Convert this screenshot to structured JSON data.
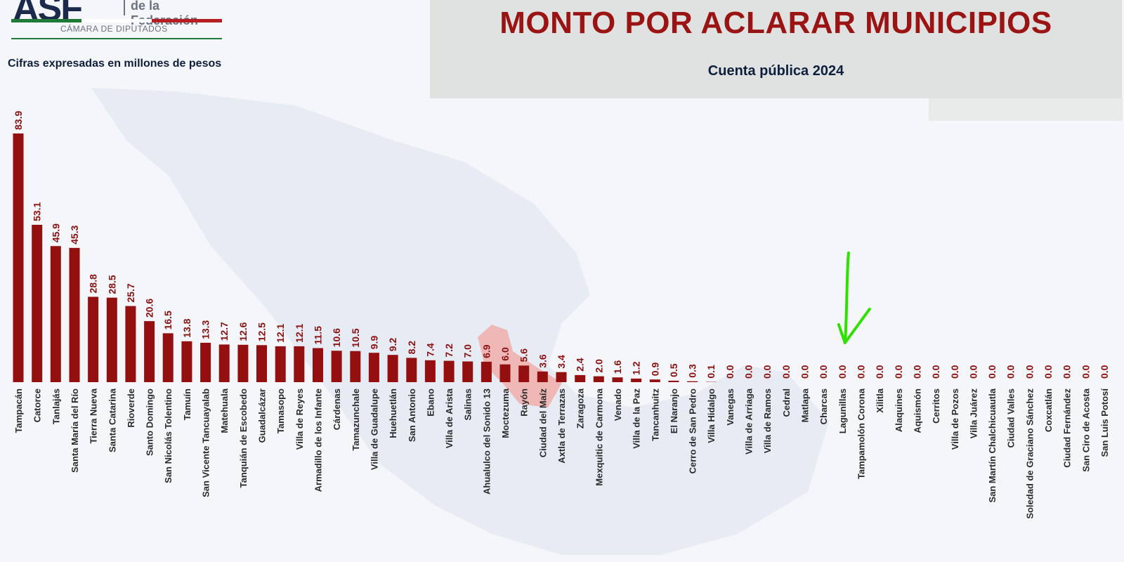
{
  "header": {
    "logo_mark": "ASF",
    "logo_line1": "de la Federación",
    "logo_line2": "CÁMARA DE DIPUTADOS",
    "units_note": "Cifras expresadas en millones de pesos",
    "title": "MONTO POR ACLARAR MUNICIPIOS",
    "year_label": "Cuenta pública 2024"
  },
  "colors": {
    "bar": "#940f0f",
    "value_label": "#8b1010",
    "title": "#9b1414",
    "navy": "#0e1f3d",
    "annotation_arrow": "#2fe000",
    "highlight": "#f2a6a0"
  },
  "chart_data": {
    "type": "bar",
    "title": "MONTO POR ACLARAR MUNICIPIOS",
    "subtitle": "Cuenta pública 2024",
    "ylabel": "",
    "xlabel": "",
    "units": "Cifras expresadas en millones de pesos",
    "ylim": [
      0,
      90
    ],
    "grid": false,
    "legend": "none",
    "categories": [
      "Tampacán",
      "Catorce",
      "Tanlajás",
      "Santa María del Río",
      "Tierra Nueva",
      "Santa Catarina",
      "Rioverde",
      "Santo Domingo",
      "San Nicolás Tolentino",
      "Tamuín",
      "San Vicente Tancuayalab",
      "Matehuala",
      "Tanquián de Escobedo",
      "Guadalcázar",
      "Tamasopo",
      "Villa de Reyes",
      "Armadillo de los Infante",
      "Cárdenas",
      "Tamazunchale",
      "Villa de Guadalupe",
      "Huehuetlán",
      "San Antonio",
      "Ebano",
      "Villa de Arista",
      "Salinas",
      "Ahualulco del Sonido 13",
      "Moctezuma",
      "Rayón",
      "Ciudad del Maíz",
      "Axtla de Terrazas",
      "Zaragoza",
      "Mexquitic de Carmona",
      "Venado",
      "Villa de la Paz",
      "Tancanhuitz",
      "El Naranjo",
      "Cerro de San Pedro",
      "Villa Hidalgo",
      "Vanegas",
      "Villa de Arriaga",
      "Villa de Ramos",
      "Cedral",
      "Matlapa",
      "Charcas",
      "Lagunillas",
      "Tampamolón Corona",
      "Xilitla",
      "Alaquines",
      "Aquismón",
      "Cerritos",
      "Villa de Pozos",
      "Villa Juárez",
      "San Martín Chalchicuautla",
      "Ciudad Valles",
      "Soledad de Graciano Sánchez",
      "Coxcatlán",
      "Ciudad Fernández",
      "San Ciro de Acosta",
      "San Luis Potosí"
    ],
    "value_labels": [
      "83.9",
      "53.1",
      "45.9",
      "45.3",
      "28.8",
      "28.5",
      "25.7",
      "20.6",
      "16.5",
      "13.8",
      "13.3",
      "12.7",
      "12.6",
      "12.5",
      "12.1",
      "12.1",
      "11.5",
      "10.6",
      "10.5",
      "9.9",
      "9.2",
      "8.2",
      "7.4",
      "7.2",
      "7.0",
      "6.9",
      "6.0",
      "5.6",
      "3.6",
      "3.4",
      "2.4",
      "2.0",
      "1.6",
      "1.2",
      "0.9",
      "0.5",
      "0.3",
      "0.1",
      "0.0",
      "0.0",
      "0.0",
      "0.0",
      "0.0",
      "0.0",
      "0.0",
      "0.0",
      "0.0",
      "0.0",
      "0.0",
      "0.0",
      "0.0",
      "0.0",
      "0.0",
      "0.0",
      "0.0",
      "0.0",
      "0.0",
      "0.0",
      "0.0"
    ],
    "values": [
      83.9,
      53.1,
      45.9,
      45.3,
      28.8,
      28.5,
      25.7,
      20.6,
      16.5,
      13.8,
      13.3,
      12.7,
      12.6,
      12.5,
      12.1,
      12.1,
      11.5,
      10.6,
      10.5,
      9.9,
      9.2,
      8.2,
      7.4,
      7.2,
      7.0,
      6.9,
      6.0,
      5.6,
      3.6,
      3.4,
      2.4,
      2.0,
      1.6,
      1.2,
      0.9,
      0.5,
      0.3,
      0.1,
      0.0,
      0.0,
      0.0,
      0.0,
      0.0,
      0.0,
      0.0,
      0.0,
      0.0,
      0.0,
      0.0,
      0.0,
      0.0,
      0.0,
      0.0,
      0.0,
      0.0,
      0.0,
      0.0,
      0.0,
      0.0
    ],
    "annotation": {
      "type": "arrow",
      "points_to": "Lagunillas",
      "color": "#2fe000"
    }
  }
}
